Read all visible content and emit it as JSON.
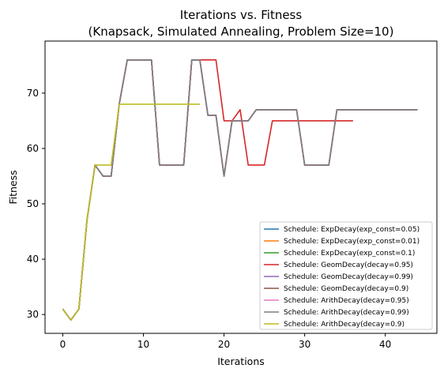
{
  "chart_data": {
    "type": "line",
    "title": "Iterations vs. Fitness",
    "subtitle": "(Knapsack, Simulated Annealing, Problem Size=10)",
    "xlabel": "Iterations",
    "ylabel": "Fitness",
    "xlim": [
      -2.2,
      46.4
    ],
    "ylim": [
      26.6,
      79.4
    ],
    "xticks": [
      0,
      10,
      20,
      30,
      40
    ],
    "yticks": [
      30,
      40,
      50,
      60,
      70
    ],
    "grid": false,
    "legend_position": "lower-right",
    "series": [
      {
        "name": "Schedule: ExpDecay(exp_const=0.05)",
        "color": "#1f77b4",
        "x": [
          0,
          1,
          2,
          3,
          4,
          5,
          6,
          7,
          8,
          9,
          10,
          11,
          12,
          13,
          14,
          15,
          16,
          17,
          18,
          19,
          20,
          21,
          22,
          23,
          24,
          25,
          26,
          27,
          28,
          29,
          30,
          31,
          32,
          33,
          34,
          35,
          36,
          37,
          38,
          39,
          40,
          41,
          42,
          43,
          44
        ],
        "y": [
          31,
          29,
          31,
          47,
          57,
          55,
          55,
          68,
          76,
          76,
          76,
          76,
          57,
          57,
          57,
          57,
          76,
          76,
          66,
          66,
          55,
          65,
          65,
          65,
          67,
          67,
          67,
          67,
          67,
          67,
          57,
          57,
          57,
          57,
          67,
          67,
          67,
          67,
          67,
          67,
          67,
          67,
          67,
          67,
          67
        ]
      },
      {
        "name": "Schedule: ExpDecay(exp_const=0.01)",
        "color": "#ff7f0e",
        "x": [
          0,
          1,
          2,
          3,
          4,
          5,
          6,
          7,
          8,
          9,
          10,
          11,
          12,
          13,
          14,
          15,
          16,
          17,
          18,
          19,
          20,
          21,
          22,
          23,
          24,
          25,
          26,
          27,
          28,
          29,
          30,
          31,
          32,
          33,
          34,
          35,
          36,
          37,
          38,
          39,
          40,
          41,
          42,
          43,
          44
        ],
        "y": [
          31,
          29,
          31,
          47,
          57,
          55,
          55,
          68,
          76,
          76,
          76,
          76,
          57,
          57,
          57,
          57,
          76,
          76,
          66,
          66,
          55,
          65,
          65,
          65,
          67,
          67,
          67,
          67,
          67,
          67,
          57,
          57,
          57,
          57,
          67,
          67,
          67,
          67,
          67,
          67,
          67,
          67,
          67,
          67,
          67
        ]
      },
      {
        "name": "Schedule: ExpDecay(exp_const=0.1)",
        "color": "#2ca02c",
        "x": [
          0,
          1,
          2,
          3,
          4,
          5,
          6,
          7,
          8,
          9,
          10,
          11,
          12,
          13,
          14,
          15,
          16,
          17,
          18,
          19,
          20,
          21,
          22,
          23,
          24,
          25,
          26,
          27,
          28,
          29,
          30,
          31,
          32,
          33,
          34,
          35,
          36,
          37,
          38,
          39,
          40,
          41,
          42,
          43,
          44
        ],
        "y": [
          31,
          29,
          31,
          47,
          57,
          55,
          55,
          68,
          76,
          76,
          76,
          76,
          57,
          57,
          57,
          57,
          76,
          76,
          66,
          66,
          55,
          65,
          65,
          65,
          67,
          67,
          67,
          67,
          67,
          67,
          57,
          57,
          57,
          57,
          67,
          67,
          67,
          67,
          67,
          67,
          67,
          67,
          67,
          67,
          67
        ]
      },
      {
        "name": "Schedule: GeomDecay(decay=0.95)",
        "color": "#d62728",
        "x": [
          0,
          1,
          2,
          3,
          4,
          5,
          6,
          7,
          8,
          9,
          10,
          11,
          12,
          13,
          14,
          15,
          16,
          17,
          18,
          19,
          20,
          21,
          22,
          23,
          24,
          25,
          26,
          27,
          28,
          29,
          30,
          31,
          32,
          33,
          34,
          35,
          36
        ],
        "y": [
          31,
          29,
          31,
          47,
          57,
          55,
          55,
          68,
          76,
          76,
          76,
          76,
          57,
          57,
          57,
          57,
          76,
          76,
          76,
          76,
          65,
          65,
          67,
          57,
          57,
          57,
          65,
          65,
          65,
          65,
          65,
          65,
          65,
          65,
          65,
          65,
          65
        ]
      },
      {
        "name": "Schedule: GeomDecay(decay=0.99)",
        "color": "#9467bd",
        "x": [
          0,
          1,
          2,
          3,
          4,
          5,
          6,
          7,
          8,
          9,
          10,
          11,
          12,
          13,
          14,
          15,
          16,
          17,
          18,
          19,
          20,
          21,
          22,
          23,
          24,
          25,
          26,
          27,
          28,
          29,
          30,
          31,
          32,
          33,
          34,
          35,
          36,
          37,
          38,
          39,
          40,
          41,
          42,
          43,
          44
        ],
        "y": [
          31,
          29,
          31,
          47,
          57,
          55,
          55,
          68,
          76,
          76,
          76,
          76,
          57,
          57,
          57,
          57,
          76,
          76,
          66,
          66,
          55,
          65,
          65,
          65,
          67,
          67,
          67,
          67,
          67,
          67,
          57,
          57,
          57,
          57,
          67,
          67,
          67,
          67,
          67,
          67,
          67,
          67,
          67,
          67,
          67
        ]
      },
      {
        "name": "Schedule: GeomDecay(decay=0.9)",
        "color": "#8c564b",
        "x": [
          0,
          1,
          2,
          3,
          4,
          5,
          6,
          7,
          8,
          9,
          10,
          11,
          12,
          13,
          14,
          15,
          16,
          17,
          18,
          19,
          20,
          21,
          22,
          23,
          24,
          25,
          26,
          27,
          28,
          29,
          30,
          31,
          32,
          33,
          34,
          35,
          36,
          37,
          38,
          39,
          40,
          41,
          42,
          43,
          44
        ],
        "y": [
          31,
          29,
          31,
          47,
          57,
          55,
          55,
          68,
          76,
          76,
          76,
          76,
          57,
          57,
          57,
          57,
          76,
          76,
          66,
          66,
          55,
          65,
          65,
          65,
          67,
          67,
          67,
          67,
          67,
          67,
          57,
          57,
          57,
          57,
          67,
          67,
          67,
          67,
          67,
          67,
          67,
          67,
          67,
          67,
          67
        ]
      },
      {
        "name": "Schedule: ArithDecay(decay=0.95)",
        "color": "#e377c2",
        "x": [
          0,
          1,
          2,
          3,
          4,
          5,
          6,
          7,
          8,
          9,
          10,
          11,
          12,
          13,
          14,
          15,
          16,
          17,
          18,
          19,
          20,
          21,
          22,
          23,
          24,
          25,
          26,
          27,
          28,
          29,
          30,
          31,
          32,
          33,
          34,
          35,
          36,
          37,
          38,
          39,
          40,
          41,
          42,
          43,
          44
        ],
        "y": [
          31,
          29,
          31,
          47,
          57,
          55,
          55,
          68,
          76,
          76,
          76,
          76,
          57,
          57,
          57,
          57,
          76,
          76,
          66,
          66,
          55,
          65,
          65,
          65,
          67,
          67,
          67,
          67,
          67,
          67,
          57,
          57,
          57,
          57,
          67,
          67,
          67,
          67,
          67,
          67,
          67,
          67,
          67,
          67,
          67
        ]
      },
      {
        "name": "Schedule: ArithDecay(decay=0.99)",
        "color": "#7f7f7f",
        "x": [
          0,
          1,
          2,
          3,
          4,
          5,
          6,
          7,
          8,
          9,
          10,
          11,
          12,
          13,
          14,
          15,
          16,
          17,
          18,
          19,
          20,
          21,
          22,
          23,
          24,
          25,
          26,
          27,
          28,
          29,
          30,
          31,
          32,
          33,
          34,
          35,
          36,
          37,
          38,
          39,
          40,
          41,
          42,
          43,
          44
        ],
        "y": [
          31,
          29,
          31,
          47,
          57,
          55,
          55,
          68,
          76,
          76,
          76,
          76,
          57,
          57,
          57,
          57,
          76,
          76,
          66,
          66,
          55,
          65,
          65,
          65,
          67,
          67,
          67,
          67,
          67,
          67,
          57,
          57,
          57,
          57,
          67,
          67,
          67,
          67,
          67,
          67,
          67,
          67,
          67,
          67,
          67
        ]
      },
      {
        "name": "Schedule: ArithDecay(decay=0.9)",
        "color": "#bcbd22",
        "x": [
          0,
          1,
          2,
          3,
          4,
          5,
          6,
          7,
          8,
          9,
          10,
          11,
          12,
          13,
          14,
          15,
          16,
          17
        ],
        "y": [
          31,
          29,
          31,
          47,
          57,
          57,
          57,
          68,
          68,
          68,
          68,
          68,
          68,
          68,
          68,
          68,
          68,
          68
        ]
      }
    ]
  }
}
